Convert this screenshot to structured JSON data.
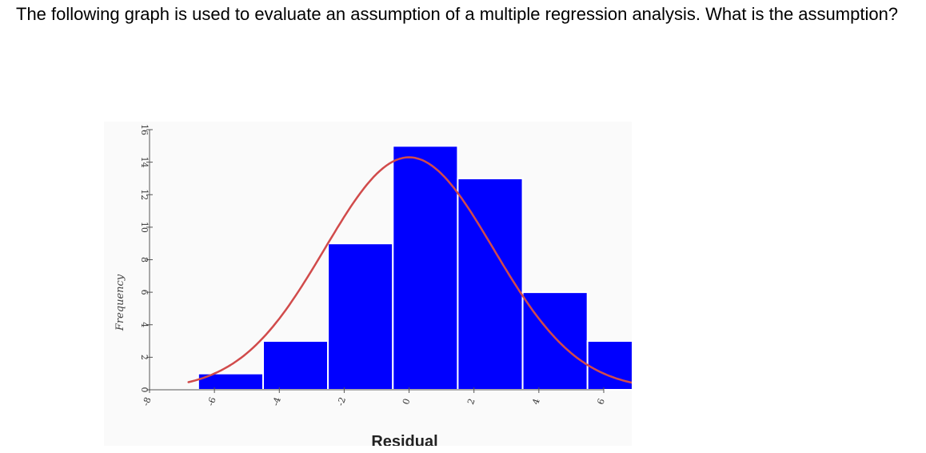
{
  "question": {
    "text": "The following graph is used to evaluate an assumption of a multiple regression analysis. What is the assumption?"
  },
  "chart_data": {
    "type": "bar",
    "subtype": "histogram with fitted normal curve",
    "xlabel": "Residual",
    "ylabel": "Frequency",
    "xlim": [
      -8,
      6
    ],
    "ylim": [
      0,
      16
    ],
    "x_ticks": [
      -8,
      -6,
      -4,
      -2,
      0,
      2,
      4,
      6
    ],
    "y_ticks": [
      0,
      2,
      4,
      6,
      8,
      10,
      12,
      14,
      16
    ],
    "bins": [
      {
        "start": -6.5,
        "end": -4.5,
        "count": 1
      },
      {
        "start": -4.5,
        "end": -2.5,
        "count": 3
      },
      {
        "start": -2.5,
        "end": -0.5,
        "count": 9
      },
      {
        "start": -0.5,
        "end": 1.5,
        "count": 15
      },
      {
        "start": 1.5,
        "end": 3.5,
        "count": 13
      },
      {
        "start": 3.5,
        "end": 5.5,
        "count": 6
      },
      {
        "start": 5.5,
        "end": 7.5,
        "count": 3
      }
    ],
    "normal_curve": {
      "mean": 0,
      "sd": 2.6,
      "peak": 14.3
    },
    "colors": {
      "bar_fill": "#0000ff",
      "bar_edge": "#ffffff",
      "curve": "#d14b4b",
      "axis": "#555555"
    },
    "grid": false,
    "legend": "none"
  }
}
